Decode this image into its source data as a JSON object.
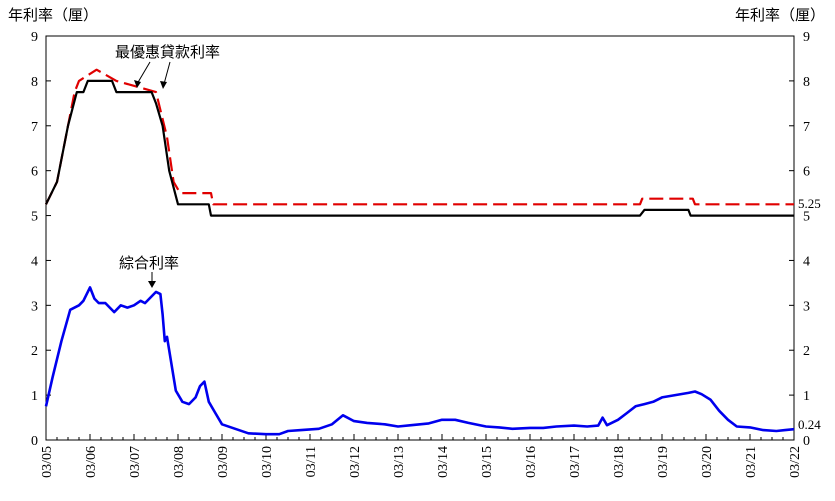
{
  "chart_data": {
    "type": "line",
    "ylabel_left": "年利率（厘）",
    "ylabel_right": "年利率（厘）",
    "ylim": [
      0,
      9
    ],
    "yticks": [
      0,
      1,
      2,
      3,
      4,
      5,
      6,
      7,
      8,
      9
    ],
    "xlim": [
      2005.0,
      2022.0
    ],
    "xticks": [
      {
        "value": 2005,
        "label": "03/05"
      },
      {
        "value": 2006,
        "label": "03/06"
      },
      {
        "value": 2007,
        "label": "03/07"
      },
      {
        "value": 2008,
        "label": "03/08"
      },
      {
        "value": 2009,
        "label": "03/09"
      },
      {
        "value": 2010,
        "label": "03/10"
      },
      {
        "value": 2011,
        "label": "03/11"
      },
      {
        "value": 2012,
        "label": "03/12"
      },
      {
        "value": 2013,
        "label": "03/13"
      },
      {
        "value": 2014,
        "label": "03/14"
      },
      {
        "value": 2015,
        "label": "03/15"
      },
      {
        "value": 2016,
        "label": "03/16"
      },
      {
        "value": 2017,
        "label": "03/17"
      },
      {
        "value": 2018,
        "label": "03/18"
      },
      {
        "value": 2019,
        "label": "03/19"
      },
      {
        "value": 2020,
        "label": "03/20"
      },
      {
        "value": 2021,
        "label": "03/21"
      },
      {
        "value": 2022,
        "label": "03/22"
      }
    ],
    "grid": false,
    "annotations": [
      {
        "text": "最優惠貸款利率",
        "target": "prime_rate"
      },
      {
        "text": "綜合利率",
        "target": "composite_rate"
      }
    ],
    "end_labels": [
      {
        "text": "5.25",
        "series": "prime_high"
      },
      {
        "text": "0.24",
        "series": "composite"
      }
    ],
    "series": [
      {
        "key": "prime_high",
        "color": "#e00000",
        "style": "dashed",
        "x": [
          2005.0,
          2005.25,
          2005.5,
          2005.65,
          2005.75,
          2006.15,
          2006.6,
          2007.5,
          2007.75,
          2007.9,
          2008.05,
          2008.75,
          2008.8,
          2018.5,
          2018.55,
          2019.7,
          2019.75,
          2022.0
        ],
        "y": [
          5.25,
          5.75,
          7.0,
          7.75,
          8.0,
          8.25,
          8.0,
          7.75,
          6.75,
          5.75,
          5.5,
          5.5,
          5.25,
          5.25,
          5.375,
          5.375,
          5.25,
          5.25
        ]
      },
      {
        "key": "prime_low",
        "color": "#000000",
        "style": "solid",
        "x": [
          2005.0,
          2005.25,
          2005.5,
          2005.7,
          2005.85,
          2005.95,
          2006.5,
          2006.6,
          2007.4,
          2007.5,
          2007.65,
          2007.8,
          2008.0,
          2008.7,
          2008.75,
          2018.5,
          2018.6,
          2019.6,
          2019.65,
          2022.0
        ],
        "y": [
          5.25,
          5.75,
          7.0,
          7.75,
          7.75,
          8.0,
          8.0,
          7.75,
          7.75,
          7.5,
          7.0,
          6.0,
          5.25,
          5.25,
          5.0,
          5.0,
          5.125,
          5.125,
          5.0,
          5.0
        ]
      },
      {
        "key": "composite",
        "color": "#0000ee",
        "style": "solid",
        "x": [
          2005.0,
          2005.15,
          2005.35,
          2005.55,
          2005.75,
          2005.85,
          2006.0,
          2006.1,
          2006.2,
          2006.35,
          2006.55,
          2006.7,
          2006.85,
          2007.0,
          2007.15,
          2007.25,
          2007.35,
          2007.5,
          2007.6,
          2007.65,
          2007.7,
          2007.75,
          2007.85,
          2007.95,
          2008.1,
          2008.25,
          2008.4,
          2008.5,
          2008.6,
          2008.7,
          2008.85,
          2009.0,
          2009.3,
          2009.6,
          2010.0,
          2010.3,
          2010.5,
          2010.8,
          2011.2,
          2011.5,
          2011.75,
          2012.0,
          2012.3,
          2012.7,
          2013.0,
          2013.3,
          2013.7,
          2014.0,
          2014.3,
          2014.6,
          2015.0,
          2015.3,
          2015.6,
          2016.0,
          2016.3,
          2016.6,
          2017.0,
          2017.3,
          2017.55,
          2017.65,
          2017.75,
          2018.0,
          2018.2,
          2018.4,
          2018.6,
          2018.8,
          2019.0,
          2019.3,
          2019.6,
          2019.75,
          2019.9,
          2020.1,
          2020.3,
          2020.5,
          2020.7,
          2021.0,
          2021.3,
          2021.6,
          2021.8,
          2022.0
        ],
        "y": [
          0.75,
          1.4,
          2.2,
          2.9,
          3.0,
          3.1,
          3.4,
          3.15,
          3.05,
          3.05,
          2.85,
          3.0,
          2.95,
          3.0,
          3.1,
          3.05,
          3.15,
          3.3,
          3.25,
          2.8,
          2.2,
          2.3,
          1.7,
          1.1,
          0.85,
          0.8,
          0.95,
          1.2,
          1.3,
          0.85,
          0.6,
          0.35,
          0.25,
          0.15,
          0.13,
          0.13,
          0.2,
          0.22,
          0.25,
          0.35,
          0.55,
          0.42,
          0.38,
          0.35,
          0.3,
          0.33,
          0.37,
          0.45,
          0.45,
          0.38,
          0.3,
          0.28,
          0.25,
          0.27,
          0.27,
          0.3,
          0.32,
          0.3,
          0.32,
          0.5,
          0.33,
          0.45,
          0.6,
          0.75,
          0.8,
          0.85,
          0.95,
          1.0,
          1.05,
          1.08,
          1.02,
          0.9,
          0.65,
          0.45,
          0.3,
          0.28,
          0.22,
          0.2,
          0.22,
          0.24
        ]
      }
    ]
  }
}
